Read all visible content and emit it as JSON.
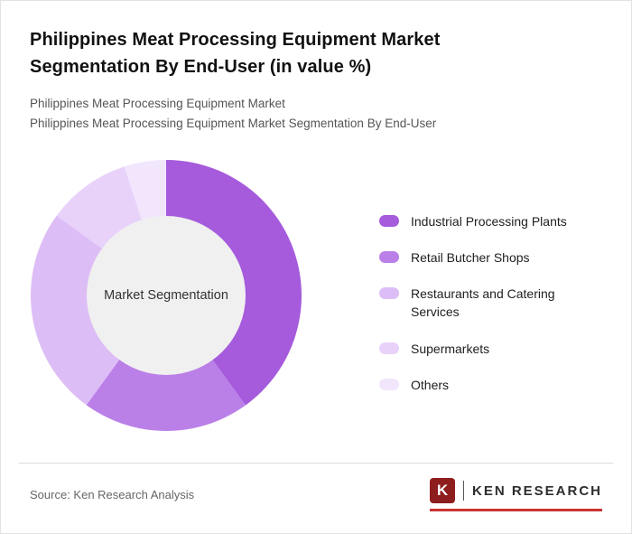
{
  "header": {
    "title": "Philippines Meat Processing Equipment Market Segmentation By End-User (in value %)",
    "subtitle1": "Philippines Meat Processing Equipment Market",
    "subtitle2": "Philippines Meat Processing Equipment Market Segmentation By End-User"
  },
  "chart_data": {
    "type": "pie",
    "donut": true,
    "center_label": "Market Segmentation",
    "categories": [
      "Industrial Processing Plants",
      "Retail Butcher Shops",
      "Restaurants and Catering Services",
      "Supermarkets",
      "Others"
    ],
    "values": [
      40,
      20,
      25,
      10,
      5
    ],
    "colors": [
      "#a55bdc",
      "#bb80e8",
      "#ddbdf6",
      "#e8d2fa",
      "#f2e6fd"
    ],
    "legend_position": "right",
    "start_angle_deg": 0
  },
  "footer": {
    "source": "Source: Ken Research Analysis",
    "logo": {
      "letter": "K",
      "brand": "KEN RESEARCH"
    }
  }
}
